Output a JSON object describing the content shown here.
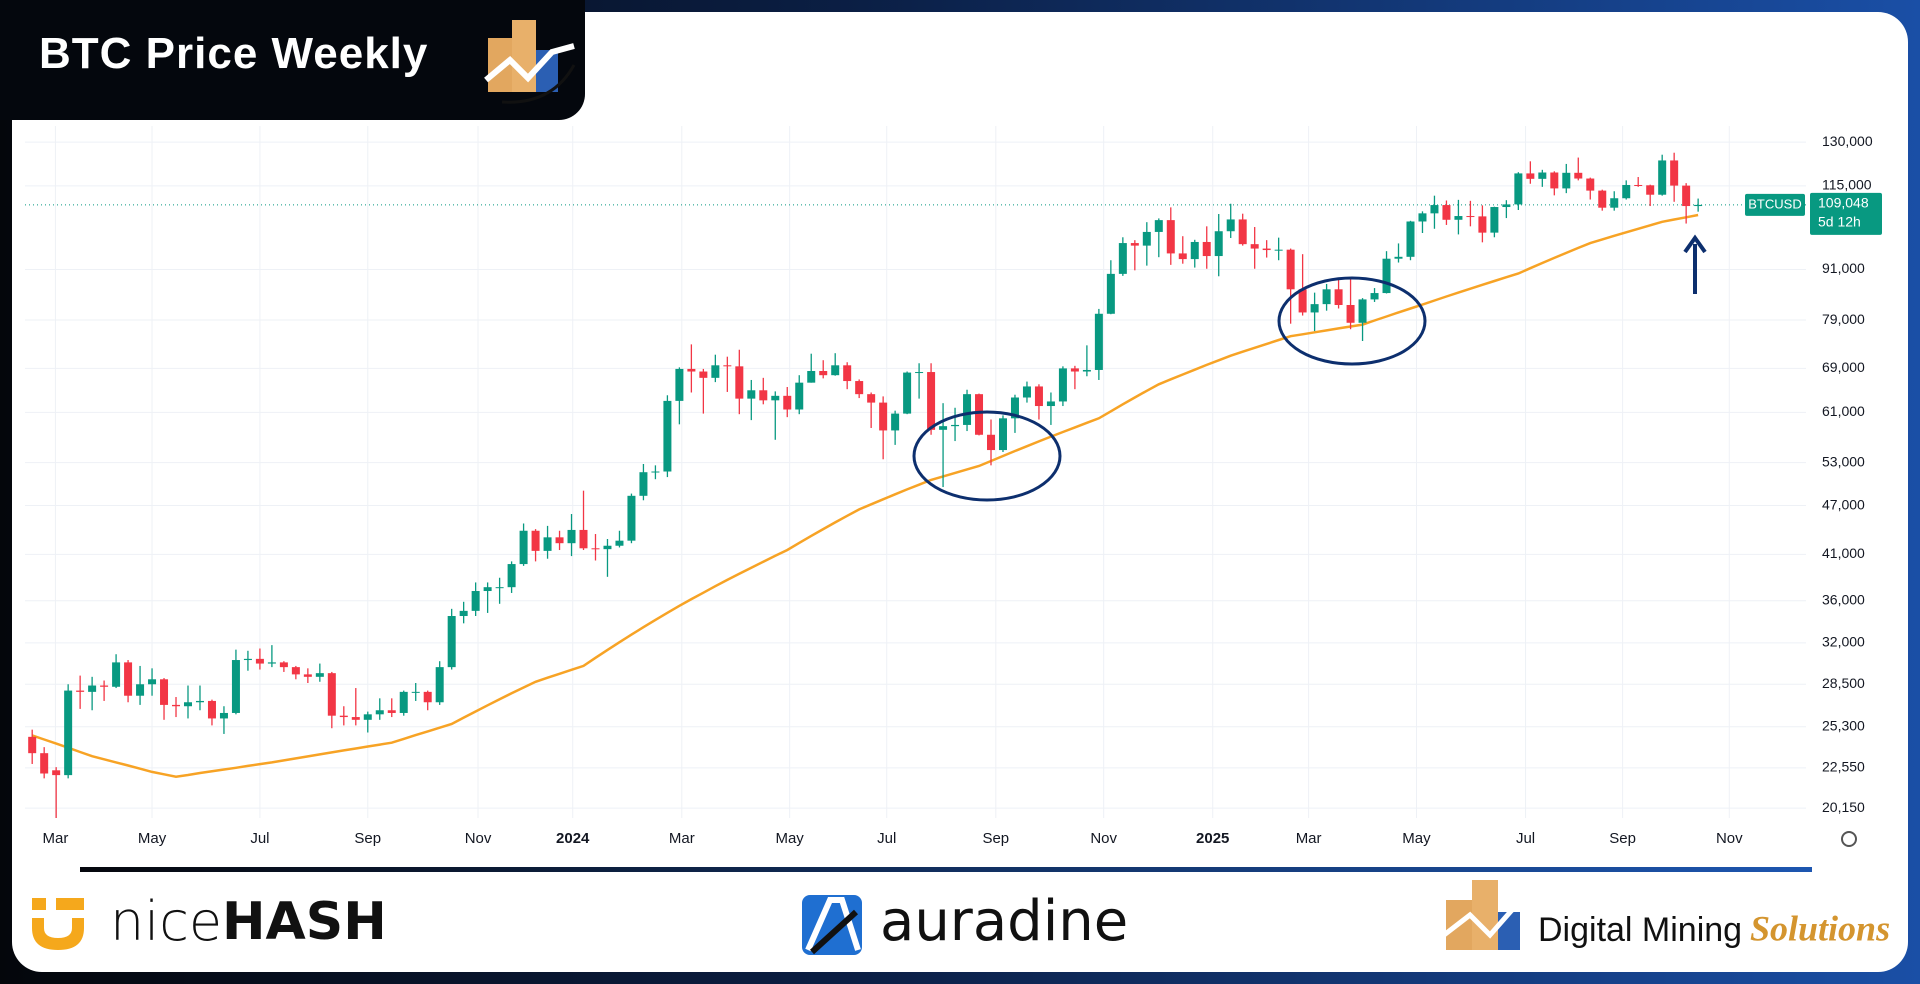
{
  "chart_data": {
    "type": "candlestick",
    "title": "BTC Price Weekly",
    "symbol": "BTCUSD",
    "last_price": {
      "value": 109048,
      "label": "109,048"
    },
    "countdown": "5d 12h",
    "up_color": "#089981",
    "down_color": "#f23645",
    "log_scale": true,
    "grid": true,
    "xlim": [
      -0.6,
      148
    ],
    "xticks": [
      {
        "value": 1.94,
        "label": "Mar"
      },
      {
        "value": 10.0,
        "label": "May"
      },
      {
        "value": 19.0,
        "label": "Jul"
      },
      {
        "value": 28.0,
        "label": "Sep"
      },
      {
        "value": 37.2,
        "label": "Nov"
      },
      {
        "value": 45.1,
        "label": "2024"
      },
      {
        "value": 54.2,
        "label": "Mar"
      },
      {
        "value": 63.2,
        "label": "May"
      },
      {
        "value": 71.3,
        "label": "Jul"
      },
      {
        "value": 80.4,
        "label": "Sep"
      },
      {
        "value": 89.4,
        "label": "Nov"
      },
      {
        "value": 98.5,
        "label": "2025"
      },
      {
        "value": 106.5,
        "label": "Mar"
      },
      {
        "value": 115.5,
        "label": "May"
      },
      {
        "value": 124.6,
        "label": "Jul"
      },
      {
        "value": 132.7,
        "label": "Sep"
      },
      {
        "value": 141.6,
        "label": "Nov"
      }
    ],
    "ylim": [
      19600,
      136000
    ],
    "yticks": [
      {
        "value": 20150,
        "label": "20,150"
      },
      {
        "value": 22550,
        "label": "22,550"
      },
      {
        "value": 25300,
        "label": "25,300"
      },
      {
        "value": 28500,
        "label": "28,500"
      },
      {
        "value": 32000,
        "label": "32,000"
      },
      {
        "value": 36000,
        "label": "36,000"
      },
      {
        "value": 41000,
        "label": "41,000"
      },
      {
        "value": 47000,
        "label": "47,000"
      },
      {
        "value": 53000,
        "label": "53,000"
      },
      {
        "value": 61000,
        "label": "61,000"
      },
      {
        "value": 69000,
        "label": "69,000"
      },
      {
        "value": 79000,
        "label": "79,000"
      },
      {
        "value": 91000,
        "label": "91,000"
      },
      {
        "value": 115000,
        "label": "115,000"
      },
      {
        "value": 130000,
        "label": "130,000"
      }
    ],
    "open": [
      24600,
      23500,
      22400,
      22100,
      28000,
      27900,
      28400,
      28300,
      30300,
      27600,
      28500,
      28900,
      26900,
      26800,
      27100,
      27200,
      25900,
      26300,
      30500,
      30600,
      30200,
      30300,
      29900,
      29300,
      29100,
      29400,
      26100,
      26000,
      25800,
      26200,
      26500,
      26300,
      27900,
      27900,
      27100,
      29900,
      34500,
      35000,
      37000,
      37400,
      37400,
      39900,
      43800,
      41400,
      43000,
      42300,
      43900,
      41700,
      41600,
      42000,
      42600,
      48300,
      51600,
      51700,
      63000,
      68900,
      68400,
      67200,
      69600,
      69400,
      63400,
      64900,
      63100,
      63900,
      61500,
      66300,
      68500,
      67700,
      69600,
      66600,
      64200,
      62700,
      58000,
      60800,
      68200,
      68300,
      58100,
      58700,
      58900,
      64200,
      57300,
      54900,
      60000,
      63600,
      65600,
      62100,
      62900,
      69000,
      68400,
      68700,
      80400,
      89900,
      98000,
      97300,
      101100,
      104500,
      95200,
      93700,
      98300,
      94500,
      101300,
      104700,
      97700,
      96500,
      96100,
      96200,
      86100,
      80700,
      82600,
      86100,
      82400,
      78400,
      83700,
      85200,
      93800,
      94300,
      104100,
      106500,
      109000,
      104600,
      105700,
      105600,
      100900,
      108400,
      109200,
      119100,
      117300,
      119400,
      114200,
      119300,
      117400,
      113500,
      108200,
      111100,
      115300,
      115200,
      112200,
      123500,
      115100,
      108700
    ],
    "high": [
      25100,
      23900,
      22600,
      28500,
      29200,
      29100,
      28800,
      31000,
      30500,
      30000,
      29800,
      29000,
      27500,
      28400,
      28400,
      27300,
      26800,
      31400,
      31300,
      31500,
      31800,
      30400,
      30000,
      29800,
      30200,
      29500,
      26800,
      28200,
      26400,
      27400,
      27400,
      28000,
      28600,
      28000,
      30400,
      35200,
      35900,
      37900,
      37900,
      38400,
      40200,
      44700,
      44000,
      44400,
      43800,
      45900,
      49000,
      43400,
      42800,
      43800,
      48600,
      52800,
      52600,
      64000,
      69200,
      73800,
      68900,
      71700,
      71300,
      72700,
      66800,
      67200,
      64700,
      65500,
      67700,
      71900,
      70600,
      72000,
      70200,
      66900,
      64500,
      63800,
      61300,
      68400,
      70000,
      70000,
      62600,
      61800,
      65000,
      64300,
      59800,
      60500,
      64100,
      66500,
      66000,
      64500,
      69400,
      69500,
      73600,
      81500,
      93400,
      99600,
      98800,
      103900,
      105000,
      108300,
      99900,
      98900,
      102700,
      106300,
      109400,
      106400,
      102500,
      98800,
      99500,
      96500,
      95000,
      85300,
      87400,
      88800,
      88500,
      84000,
      86400,
      95800,
      97900,
      104300,
      107100,
      111900,
      110400,
      110600,
      110300,
      108900,
      108500,
      110500,
      119500,
      123200,
      120300,
      119800,
      122300,
      124500,
      117700,
      113800,
      113300,
      116800,
      117900,
      115400,
      125500,
      126200,
      115900,
      111000
    ],
    "low": [
      22800,
      21900,
      19600,
      21900,
      26600,
      26500,
      27200,
      28200,
      27100,
      26900,
      27600,
      25800,
      26000,
      25900,
      26500,
      25400,
      24800,
      26200,
      29600,
      29700,
      29900,
      29500,
      28900,
      28600,
      28700,
      25200,
      25400,
      25400,
      24900,
      25800,
      26000,
      26100,
      27200,
      26500,
      26900,
      29700,
      33800,
      34500,
      34800,
      35700,
      36800,
      39700,
      40200,
      40500,
      41500,
      40800,
      41500,
      40300,
      38500,
      41800,
      42300,
      47700,
      50600,
      50900,
      59000,
      64500,
      60800,
      66400,
      64600,
      60700,
      59700,
      62400,
      56500,
      60200,
      60700,
      66300,
      67100,
      67600,
      65100,
      63500,
      58400,
      53500,
      55700,
      60700,
      63400,
      57300,
      49500,
      56300,
      57900,
      57200,
      52600,
      54600,
      57600,
      62700,
      59800,
      58900,
      62100,
      65100,
      67500,
      66800,
      80300,
      89400,
      90800,
      92000,
      94200,
      92200,
      92500,
      91500,
      91200,
      89300,
      99400,
      97300,
      91200,
      94100,
      93400,
      78200,
      80000,
      76600,
      81100,
      81600,
      77000,
      74500,
      83100,
      85100,
      92800,
      93400,
      100800,
      102000,
      103100,
      100400,
      102700,
      98200,
      99600,
      105100,
      107500,
      115700,
      114700,
      112000,
      112700,
      116800,
      110700,
      107300,
      107300,
      110700,
      114700,
      108700,
      111900,
      110000,
      103500,
      107000
    ],
    "close": [
      23500,
      22200,
      22100,
      28000,
      27900,
      28400,
      28300,
      30300,
      27600,
      28500,
      28900,
      26900,
      26800,
      27100,
      27200,
      25900,
      26300,
      30500,
      30600,
      30200,
      30300,
      29900,
      29300,
      29100,
      29400,
      26100,
      26000,
      25800,
      26200,
      26500,
      26300,
      27900,
      27900,
      27100,
      29900,
      34500,
      35000,
      37000,
      37400,
      37400,
      39900,
      43800,
      41400,
      43000,
      42300,
      43900,
      41700,
      41600,
      42000,
      42600,
      48300,
      51600,
      51700,
      63000,
      68900,
      68400,
      67200,
      69600,
      69400,
      63400,
      64900,
      63100,
      63900,
      61500,
      66300,
      68500,
      67700,
      69600,
      66600,
      64200,
      62700,
      58000,
      60800,
      68200,
      68300,
      58100,
      58700,
      58900,
      64200,
      57300,
      54900,
      60000,
      63600,
      65600,
      62100,
      62900,
      69000,
      68400,
      68700,
      80400,
      89900,
      98000,
      97300,
      101100,
      104500,
      95200,
      93700,
      98300,
      94500,
      101300,
      104700,
      97700,
      96500,
      96100,
      96200,
      86100,
      80700,
      82600,
      86100,
      82400,
      78400,
      83700,
      85200,
      93800,
      94300,
      104100,
      106500,
      109000,
      104600,
      105700,
      105600,
      100900,
      108400,
      109200,
      119100,
      117300,
      119400,
      114200,
      119300,
      117400,
      113500,
      108200,
      111100,
      115300,
      115200,
      112200,
      123500,
      115100,
      108700,
      109048
    ],
    "ma": {
      "color": "#f7a325",
      "values": [
        24700,
        24420,
        24140,
        23860,
        23580,
        23300,
        23100,
        22900,
        22700,
        22500,
        22300,
        22150,
        22000,
        22110,
        22230,
        22340,
        22450,
        22560,
        22680,
        22790,
        22900,
        23030,
        23160,
        23290,
        23420,
        23550,
        23680,
        23810,
        23940,
        24070,
        24200,
        24460,
        24720,
        24980,
        25240,
        25500,
        25960,
        26410,
        26870,
        27330,
        27790,
        28240,
        28700,
        29030,
        29350,
        29680,
        30000,
        30690,
        31380,
        32060,
        32750,
        33440,
        34130,
        34810,
        35500,
        36170,
        36830,
        37500,
        38170,
        38830,
        39500,
        40170,
        40830,
        41500,
        42330,
        43170,
        44000,
        44830,
        45670,
        46500,
        47170,
        47830,
        48500,
        49170,
        49830,
        50500,
        51000,
        51500,
        52000,
        52500,
        53250,
        54000,
        54750,
        55500,
        56250,
        57000,
        57750,
        58500,
        59250,
        60000,
        61200,
        62400,
        63600,
        64800,
        66000,
        66920,
        67830,
        68750,
        69670,
        70580,
        71500,
        72300,
        73100,
        73900,
        74700,
        75500,
        75920,
        76330,
        76750,
        77170,
        77580,
        78000,
        78900,
        79800,
        80700,
        81600,
        82500,
        83440,
        84380,
        85310,
        86250,
        87190,
        88130,
        89060,
        90000,
        91330,
        92670,
        94000,
        95330,
        96670,
        98000,
        99000,
        100000,
        101000,
        102000,
        103000,
        104000,
        104670,
        105330,
        106000
      ]
    }
  },
  "footer": {
    "nicehash": [
      "nice",
      "HASH"
    ],
    "auradine": "auradine",
    "dms": [
      "Digital Mining",
      "Solutions"
    ]
  }
}
